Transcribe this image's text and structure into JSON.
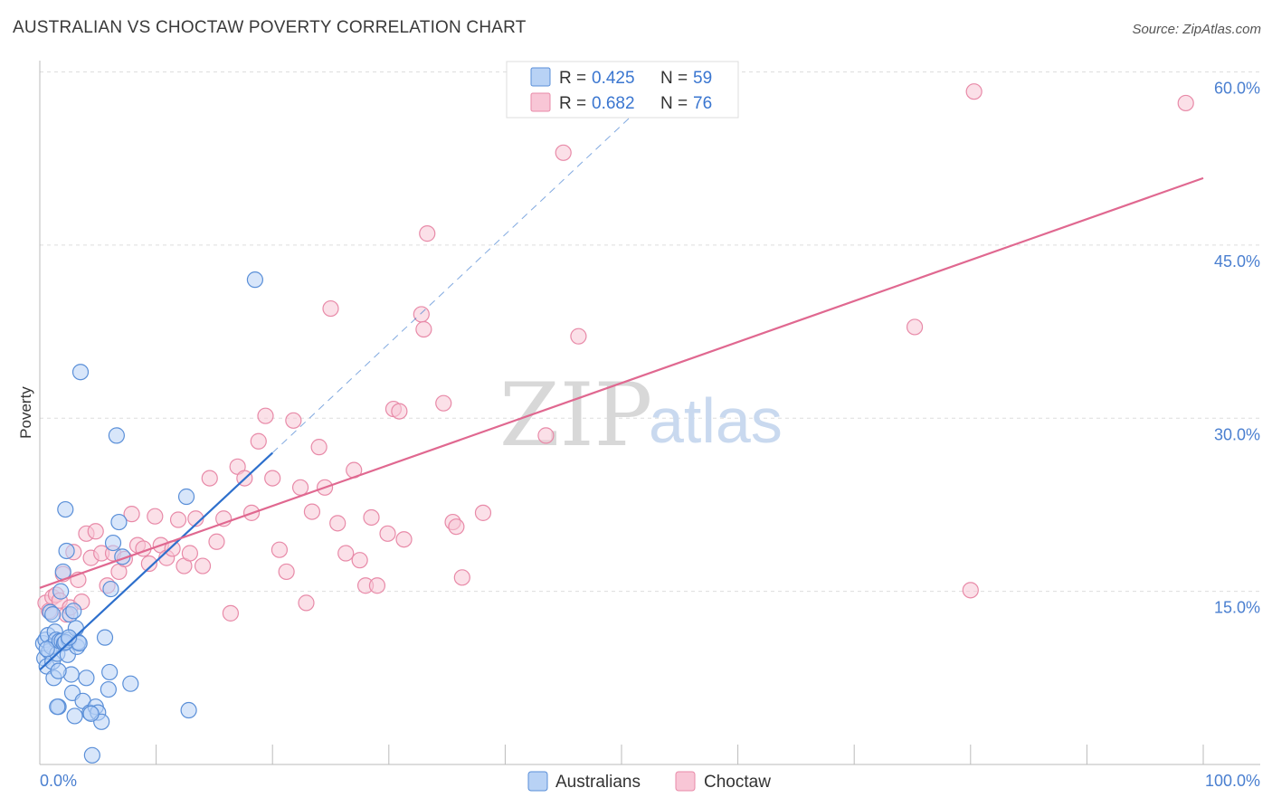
{
  "title": "AUSTRALIAN VS CHOCTAW POVERTY CORRELATION CHART",
  "source": "Source: ZipAtlas.com",
  "watermark": {
    "zip": "ZIP",
    "atlas": "atlas"
  },
  "colors": {
    "australians_fill": "#b8d2f5",
    "australians_stroke": "#5a8fd8",
    "australians_line": "#2d6fcc",
    "choctaw_fill": "#f8c6d6",
    "choctaw_stroke": "#e88aa8",
    "choctaw_line": "#e06890",
    "tick_color": "#4a7fd0",
    "grid": "#dddddd"
  },
  "legend": {
    "rows": [
      {
        "r_label": "R =",
        "r_value": "0.425",
        "n_label": "N =",
        "n_value": "59"
      },
      {
        "r_label": "R =",
        "r_value": "0.682",
        "n_label": "N =",
        "n_value": "76"
      }
    ]
  },
  "chart_data": {
    "type": "scatter",
    "title": "AUSTRALIAN VS CHOCTAW POVERTY CORRELATION CHART",
    "xlabel": "",
    "ylabel": "Poverty",
    "xlim": [
      0,
      100
    ],
    "ylim": [
      0,
      60
    ],
    "x_tick_labels": [
      "0.0%",
      "100.0%"
    ],
    "y_ticks": [
      15,
      30,
      45,
      60
    ],
    "y_tick_labels": [
      "15.0%",
      "30.0%",
      "45.0%",
      "60.0%"
    ],
    "grid": true,
    "legend_position": "top-center",
    "series": [
      {
        "name": "Australians",
        "r": 0.425,
        "n": 59,
        "trend": {
          "x0": 0,
          "y0": 8.2,
          "x1": 20,
          "y1": 27.0,
          "dash_to_x": 53.2,
          "dash_to_y": 58.4
        },
        "points": [
          [
            0.3,
            10.5
          ],
          [
            0.4,
            9.2
          ],
          [
            0.5,
            10.8
          ],
          [
            0.6,
            8.5
          ],
          [
            0.7,
            11.2
          ],
          [
            0.8,
            9.8
          ],
          [
            0.9,
            13.2
          ],
          [
            1.0,
            10.2
          ],
          [
            1.1,
            8.9
          ],
          [
            1.2,
            7.5
          ],
          [
            1.3,
            11.5
          ],
          [
            1.4,
            10.8
          ],
          [
            1.5,
            9.6
          ],
          [
            1.6,
            5.0
          ],
          [
            1.7,
            10.7
          ],
          [
            1.8,
            15.0
          ],
          [
            1.9,
            10.7
          ],
          [
            2.0,
            16.7
          ],
          [
            2.1,
            10.5
          ],
          [
            2.2,
            22.1
          ],
          [
            2.3,
            18.5
          ],
          [
            2.4,
            9.5
          ],
          [
            2.5,
            10.8
          ],
          [
            2.6,
            13.0
          ],
          [
            2.7,
            7.8
          ],
          [
            2.8,
            6.2
          ],
          [
            2.9,
            13.3
          ],
          [
            3.0,
            4.2
          ],
          [
            3.1,
            11.8
          ],
          [
            3.2,
            10.2
          ],
          [
            3.3,
            10.6
          ],
          [
            3.5,
            34.0
          ],
          [
            3.7,
            5.5
          ],
          [
            4.0,
            7.5
          ],
          [
            4.3,
            4.5
          ],
          [
            4.5,
            0.8
          ],
          [
            4.8,
            5.0
          ],
          [
            5.0,
            4.5
          ],
          [
            5.3,
            3.7
          ],
          [
            5.6,
            11.0
          ],
          [
            6.0,
            8.0
          ],
          [
            6.3,
            19.2
          ],
          [
            6.6,
            28.5
          ],
          [
            6.8,
            21.0
          ],
          [
            7.1,
            18.0
          ],
          [
            7.8,
            7.0
          ],
          [
            12.6,
            23.2
          ],
          [
            12.8,
            4.7
          ],
          [
            18.5,
            42.0
          ],
          [
            1.5,
            5.0
          ],
          [
            2.2,
            10.6
          ],
          [
            3.4,
            10.5
          ],
          [
            0.6,
            10.0
          ],
          [
            1.1,
            13.0
          ],
          [
            2.5,
            11.0
          ],
          [
            4.4,
            4.4
          ],
          [
            5.9,
            6.5
          ],
          [
            6.1,
            15.2
          ],
          [
            1.6,
            8.1
          ]
        ]
      },
      {
        "name": "Choctaw",
        "r": 0.682,
        "n": 76,
        "trend": {
          "x0": 0,
          "y0": 15.3,
          "x1": 100,
          "y1": 50.8
        },
        "points": [
          [
            0.5,
            14.0
          ],
          [
            0.8,
            13.3
          ],
          [
            1.1,
            14.5
          ],
          [
            1.4,
            14.7
          ],
          [
            1.7,
            14.2
          ],
          [
            2.0,
            16.5
          ],
          [
            2.3,
            13.0
          ],
          [
            2.6,
            13.6
          ],
          [
            2.9,
            18.4
          ],
          [
            3.3,
            16.0
          ],
          [
            3.6,
            14.1
          ],
          [
            4.0,
            20.0
          ],
          [
            4.4,
            17.9
          ],
          [
            4.8,
            20.2
          ],
          [
            5.3,
            18.3
          ],
          [
            5.8,
            15.5
          ],
          [
            6.3,
            18.3
          ],
          [
            6.8,
            16.7
          ],
          [
            7.3,
            17.8
          ],
          [
            7.9,
            21.7
          ],
          [
            8.4,
            19.0
          ],
          [
            8.9,
            18.7
          ],
          [
            9.4,
            17.4
          ],
          [
            9.9,
            21.5
          ],
          [
            10.4,
            19.0
          ],
          [
            10.9,
            17.9
          ],
          [
            11.4,
            18.7
          ],
          [
            11.9,
            21.2
          ],
          [
            12.4,
            17.2
          ],
          [
            12.9,
            18.3
          ],
          [
            13.4,
            21.3
          ],
          [
            14.0,
            17.2
          ],
          [
            14.6,
            24.8
          ],
          [
            15.2,
            19.3
          ],
          [
            15.8,
            21.3
          ],
          [
            16.4,
            13.1
          ],
          [
            17.0,
            25.8
          ],
          [
            17.6,
            24.8
          ],
          [
            18.2,
            21.8
          ],
          [
            18.8,
            28.0
          ],
          [
            19.4,
            30.2
          ],
          [
            20.0,
            24.8
          ],
          [
            20.6,
            18.6
          ],
          [
            21.2,
            16.7
          ],
          [
            21.8,
            29.8
          ],
          [
            22.4,
            24.0
          ],
          [
            22.9,
            14.0
          ],
          [
            23.4,
            21.9
          ],
          [
            24.0,
            27.5
          ],
          [
            24.5,
            24.0
          ],
          [
            25.0,
            39.5
          ],
          [
            25.6,
            20.9
          ],
          [
            26.3,
            18.3
          ],
          [
            27.0,
            25.5
          ],
          [
            27.5,
            17.7
          ],
          [
            28.0,
            15.5
          ],
          [
            28.5,
            21.4
          ],
          [
            29.0,
            15.5
          ],
          [
            29.9,
            20.0
          ],
          [
            30.4,
            30.8
          ],
          [
            30.9,
            30.6
          ],
          [
            31.3,
            19.5
          ],
          [
            32.8,
            39.0
          ],
          [
            33.0,
            37.7
          ],
          [
            33.3,
            46.0
          ],
          [
            34.7,
            31.3
          ],
          [
            35.5,
            21.0
          ],
          [
            35.8,
            20.6
          ],
          [
            36.3,
            16.2
          ],
          [
            38.1,
            21.8
          ],
          [
            43.5,
            28.5
          ],
          [
            45.0,
            53.0
          ],
          [
            46.3,
            37.1
          ],
          [
            75.2,
            37.9
          ],
          [
            80.0,
            15.1
          ],
          [
            80.3,
            58.3
          ],
          [
            98.5,
            57.3
          ]
        ]
      }
    ]
  },
  "bottom_legend": [
    {
      "label": "Australians"
    },
    {
      "label": "Choctaw"
    }
  ]
}
